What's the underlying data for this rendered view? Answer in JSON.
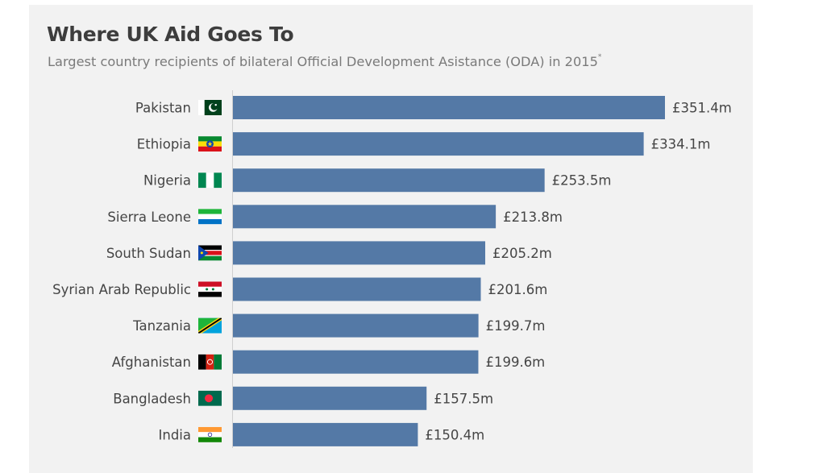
{
  "chart_data": {
    "type": "bar",
    "orientation": "horizontal",
    "title": "Where UK Aid Goes To",
    "subtitle": "Largest country recipients of bilateral Official Development Asistance (ODA) in 2015",
    "subtitle_marker": "*",
    "value_prefix": "£",
    "value_suffix": "m",
    "categories": [
      "Pakistan",
      "Ethiopia",
      "Nigeria",
      "Sierra Leone",
      "South Sudan",
      "Syrian Arab Republic",
      "Tanzania",
      "Afghanistan",
      "Bangladesh",
      "India"
    ],
    "values": [
      351.4,
      334.1,
      253.5,
      213.8,
      205.2,
      201.6,
      199.7,
      199.6,
      157.5,
      150.4
    ],
    "flag_icons": [
      "pakistan-flag-icon",
      "ethiopia-flag-icon",
      "nigeria-flag-icon",
      "sierra-leone-flag-icon",
      "south-sudan-flag-icon",
      "syria-flag-icon",
      "tanzania-flag-icon",
      "afghanistan-flag-icon",
      "bangladesh-flag-icon",
      "india-flag-icon"
    ],
    "bar_color": "#5479a6",
    "grid": false,
    "legend": "none"
  }
}
